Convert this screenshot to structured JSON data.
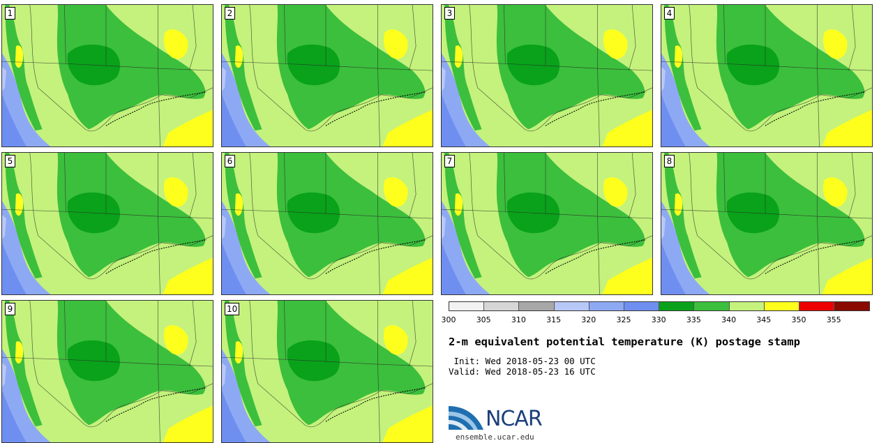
{
  "panels": [
    "1",
    "2",
    "3",
    "4",
    "5",
    "6",
    "7",
    "8",
    "9",
    "10"
  ],
  "colorbar": {
    "colors": [
      "#f2f2f2",
      "#d6d6d6",
      "#a8a8a8",
      "#b7c8f7",
      "#8ea9f4",
      "#6f8ff0",
      "#09a21a",
      "#3cbf3c",
      "#c4f27c",
      "#ffff1e",
      "#ec0000",
      "#8b0a00"
    ],
    "ticks": [
      "300",
      "305",
      "310",
      "315",
      "320",
      "325",
      "330",
      "335",
      "340",
      "345",
      "350",
      "355"
    ]
  },
  "title": "2-m equivalent potential temperature (K) postage stamp",
  "init": " Init: Wed 2018-05-23 00 UTC",
  "valid": "Valid: Wed 2018-05-23 16 UTC",
  "logo": {
    "text": "NCAR",
    "url": "ensemble.ucar.edu"
  }
}
